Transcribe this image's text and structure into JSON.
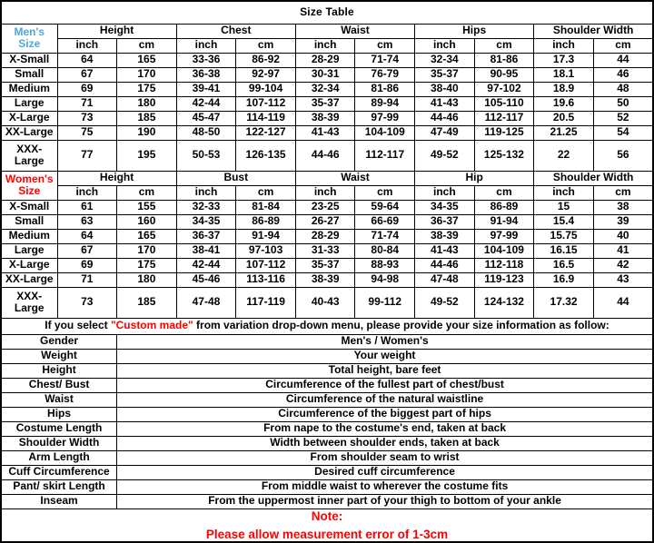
{
  "title": "Size Table",
  "colors": {
    "mens_label": "#4FA8DC",
    "womens_label": "#FF0000",
    "accent_red": "#FF0000"
  },
  "units": {
    "inch": "inch",
    "cm": "cm"
  },
  "mens": {
    "label": "Men's Size",
    "groups": [
      "Height",
      "Chest",
      "Waist",
      "Hips",
      "Shoulder Width"
    ],
    "rows": [
      {
        "size": "X-Small",
        "cells": [
          "64",
          "165",
          "33-36",
          "86-92",
          "28-29",
          "71-74",
          "32-34",
          "81-86",
          "17.3",
          "44"
        ]
      },
      {
        "size": "Small",
        "cells": [
          "67",
          "170",
          "36-38",
          "92-97",
          "30-31",
          "76-79",
          "35-37",
          "90-95",
          "18.1",
          "46"
        ]
      },
      {
        "size": "Medium",
        "cells": [
          "69",
          "175",
          "39-41",
          "99-104",
          "32-34",
          "81-86",
          "38-40",
          "97-102",
          "18.9",
          "48"
        ]
      },
      {
        "size": "Large",
        "cells": [
          "71",
          "180",
          "42-44",
          "107-112",
          "35-37",
          "89-94",
          "41-43",
          "105-110",
          "19.6",
          "50"
        ]
      },
      {
        "size": "X-Large",
        "cells": [
          "73",
          "185",
          "45-47",
          "114-119",
          "38-39",
          "97-99",
          "44-46",
          "112-117",
          "20.5",
          "52"
        ]
      },
      {
        "size": "XX-Large",
        "cells": [
          "75",
          "190",
          "48-50",
          "122-127",
          "41-43",
          "104-109",
          "47-49",
          "119-125",
          "21.25",
          "54"
        ]
      },
      {
        "size": "XXX-Large",
        "cells": [
          "77",
          "195",
          "50-53",
          "126-135",
          "44-46",
          "112-117",
          "49-52",
          "125-132",
          "22",
          "56"
        ]
      }
    ]
  },
  "womens": {
    "label": "Women's Size",
    "groups": [
      "Height",
      "Bust",
      "Waist",
      "Hip",
      "Shoulder Width"
    ],
    "rows": [
      {
        "size": "X-Small",
        "cells": [
          "61",
          "155",
          "32-33",
          "81-84",
          "23-25",
          "59-64",
          "34-35",
          "86-89",
          "15",
          "38"
        ]
      },
      {
        "size": "Small",
        "cells": [
          "63",
          "160",
          "34-35",
          "86-89",
          "26-27",
          "66-69",
          "36-37",
          "91-94",
          "15.4",
          "39"
        ]
      },
      {
        "size": "Medium",
        "cells": [
          "64",
          "165",
          "36-37",
          "91-94",
          "28-29",
          "71-74",
          "38-39",
          "97-99",
          "15.75",
          "40"
        ]
      },
      {
        "size": "Large",
        "cells": [
          "67",
          "170",
          "38-41",
          "97-103",
          "31-33",
          "80-84",
          "41-43",
          "104-109",
          "16.15",
          "41"
        ]
      },
      {
        "size": "X-Large",
        "cells": [
          "69",
          "175",
          "42-44",
          "107-112",
          "35-37",
          "88-93",
          "44-46",
          "112-118",
          "16.5",
          "42"
        ]
      },
      {
        "size": "XX-Large",
        "cells": [
          "71",
          "180",
          "45-46",
          "113-116",
          "38-39",
          "94-98",
          "47-48",
          "119-123",
          "16.9",
          "43"
        ]
      },
      {
        "size": "XXX-Large",
        "cells": [
          "73",
          "185",
          "47-48",
          "117-119",
          "40-43",
          "99-112",
          "49-52",
          "124-132",
          "17.32",
          "44"
        ]
      }
    ]
  },
  "custom_note": {
    "prefix": "If you select ",
    "highlight": "\"Custom made\"",
    "suffix": " from variation drop-down menu, please provide your size information as follow:"
  },
  "measurements": {
    "rows": [
      {
        "label": "Gender",
        "description": "Men's / Women's"
      },
      {
        "label": "Weight",
        "description": "Your weight"
      },
      {
        "label": "Height",
        "description": "Total height, bare feet"
      },
      {
        "label": "Chest/ Bust",
        "description": "Circumference of the fullest part of chest/bust"
      },
      {
        "label": "Waist",
        "description": "Circumference of the natural waistline"
      },
      {
        "label": "Hips",
        "description": "Circumference of the biggest part of hips"
      },
      {
        "label": "Costume Length",
        "description": "From nape to the costume's end, taken at back"
      },
      {
        "label": "Shoulder Width",
        "description": "Width between shoulder ends, taken at back"
      },
      {
        "label": "Arm Length",
        "description": "From shoulder seam to wrist"
      },
      {
        "label": "Cuff Circumference",
        "description": "Desired cuff circumference"
      },
      {
        "label": "Pant/ skirt Length",
        "description": "From middle waist to wherever the costume fits"
      },
      {
        "label": "Inseam",
        "description": "From the uppermost inner part of your thigh to bottom of your ankle"
      }
    ]
  },
  "note": {
    "heading": "Note:",
    "body": "Please allow measurement error of 1-3cm"
  }
}
